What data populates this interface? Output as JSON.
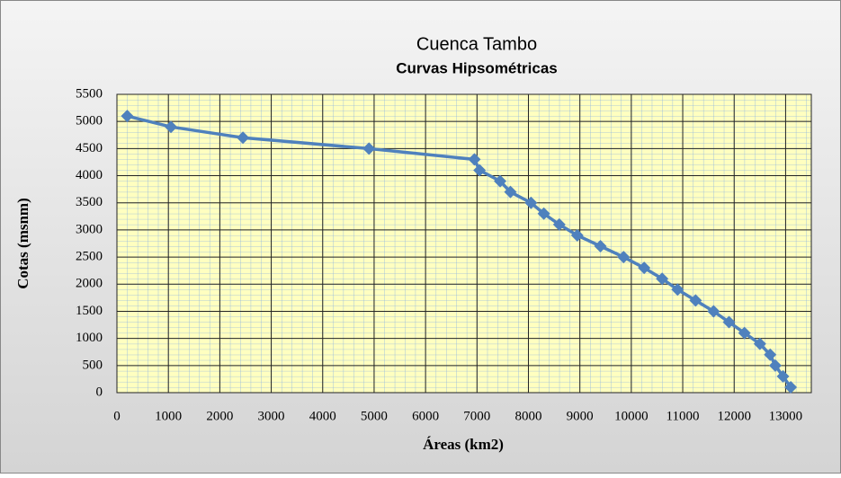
{
  "chart_data": {
    "type": "line",
    "title": "Cuenca Tambo",
    "subtitle": "Curvas Hipsométricas",
    "x_label": "Áreas (km2)",
    "y_label": "Cotas (msnm)",
    "series": [
      {
        "color": "#4f81bd",
        "x": [
          200,
          1050,
          2450,
          4900,
          6950,
          7050,
          7450,
          7650,
          8050,
          8300,
          8600,
          8950,
          9400,
          9850,
          10250,
          10600,
          10900,
          11250,
          11600,
          11900,
          12200,
          12500,
          12700,
          12800,
          12950,
          13100
        ],
        "values": [
          5100,
          4900,
          4700,
          4500,
          4300,
          4100,
          3900,
          3700,
          3500,
          3300,
          3100,
          2900,
          2700,
          2500,
          2300,
          2100,
          1900,
          1700,
          1500,
          1300,
          1100,
          900,
          700,
          500,
          300,
          100
        ]
      }
    ],
    "xlim": [
      0,
      13500
    ],
    "xticks": [
      0,
      1000,
      2000,
      3000,
      4000,
      5000,
      6000,
      7000,
      8000,
      9000,
      10000,
      11000,
      12000,
      13000
    ],
    "ylim": [
      0,
      5500
    ],
    "yticks": [
      0,
      500,
      1000,
      1500,
      2000,
      2500,
      3000,
      3500,
      4000,
      4500,
      5000,
      5500
    ],
    "grid": true
  }
}
